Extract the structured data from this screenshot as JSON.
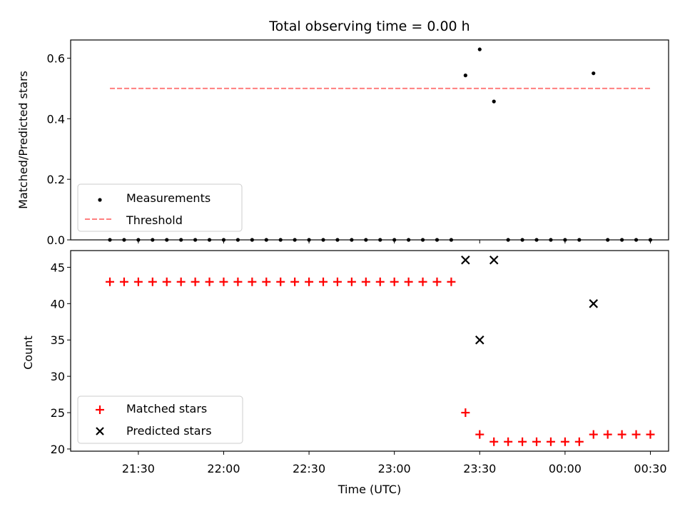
{
  "chart_data": [
    {
      "type": "scatter",
      "title": "Total observing time = 0.00 h",
      "xlabel": "",
      "ylabel": "Matched/Predicted stars",
      "ylim": [
        0,
        0.66
      ],
      "yticks": [
        "0.0",
        "0.2",
        "0.4",
        "0.6"
      ],
      "grid": false,
      "legend_position": "lower-left",
      "series": [
        {
          "name": "Measurements",
          "marker": "dot",
          "color": "#000000",
          "x": [
            "21:20",
            "21:25",
            "21:30",
            "21:35",
            "21:40",
            "21:45",
            "21:50",
            "21:55",
            "22:00",
            "22:05",
            "22:10",
            "22:15",
            "22:20",
            "22:25",
            "22:30",
            "22:35",
            "22:40",
            "22:45",
            "22:50",
            "22:55",
            "23:00",
            "23:05",
            "23:10",
            "23:15",
            "23:20",
            "23:25",
            "23:30",
            "23:35",
            "23:40",
            "23:45",
            "23:50",
            "23:55",
            "00:00",
            "00:05",
            "00:10",
            "00:15",
            "00:20",
            "00:25",
            "00:30"
          ],
          "y": [
            0,
            0,
            0,
            0,
            0,
            0,
            0,
            0,
            0,
            0,
            0,
            0,
            0,
            0,
            0,
            0,
            0,
            0,
            0,
            0,
            0,
            0,
            0,
            0,
            0,
            0.543,
            0.629,
            0.457,
            0,
            0,
            0,
            0,
            0,
            0,
            0.55,
            0,
            0,
            0,
            0
          ]
        },
        {
          "name": "Threshold",
          "style": "dashed",
          "color": "#ff7f7f",
          "x": [
            "21:20",
            "00:30"
          ],
          "y": [
            0.5,
            0.5
          ]
        }
      ]
    },
    {
      "type": "scatter",
      "title": "",
      "xlabel": "Time (UTC)",
      "ylabel": "Count",
      "ylim": [
        19.7,
        47.3
      ],
      "yticks": [
        "20",
        "25",
        "30",
        "35",
        "40",
        "45"
      ],
      "xticks": [
        "21:30",
        "22:00",
        "22:30",
        "23:00",
        "23:30",
        "00:00",
        "00:30"
      ],
      "grid": false,
      "legend_position": "lower-left",
      "series": [
        {
          "name": "Matched stars",
          "marker": "plus",
          "color": "#ff0000",
          "x": [
            "21:20",
            "21:25",
            "21:30",
            "21:35",
            "21:40",
            "21:45",
            "21:50",
            "21:55",
            "22:00",
            "22:05",
            "22:10",
            "22:15",
            "22:20",
            "22:25",
            "22:30",
            "22:35",
            "22:40",
            "22:45",
            "22:50",
            "22:55",
            "23:00",
            "23:05",
            "23:10",
            "23:15",
            "23:20",
            "23:25",
            "23:30",
            "23:35",
            "23:40",
            "23:45",
            "23:50",
            "23:55",
            "00:00",
            "00:05",
            "00:10",
            "00:15",
            "00:20",
            "00:25",
            "00:30"
          ],
          "y": [
            43,
            43,
            43,
            43,
            43,
            43,
            43,
            43,
            43,
            43,
            43,
            43,
            43,
            43,
            43,
            43,
            43,
            43,
            43,
            43,
            43,
            43,
            43,
            43,
            43,
            25,
            22,
            21,
            21,
            21,
            21,
            21,
            21,
            21,
            22,
            22,
            22,
            22,
            22
          ]
        },
        {
          "name": "Predicted stars",
          "marker": "x",
          "color": "#000000",
          "x": [
            "23:25",
            "23:30",
            "23:35",
            "00:10"
          ],
          "y": [
            46,
            35,
            46,
            40
          ]
        }
      ]
    }
  ]
}
